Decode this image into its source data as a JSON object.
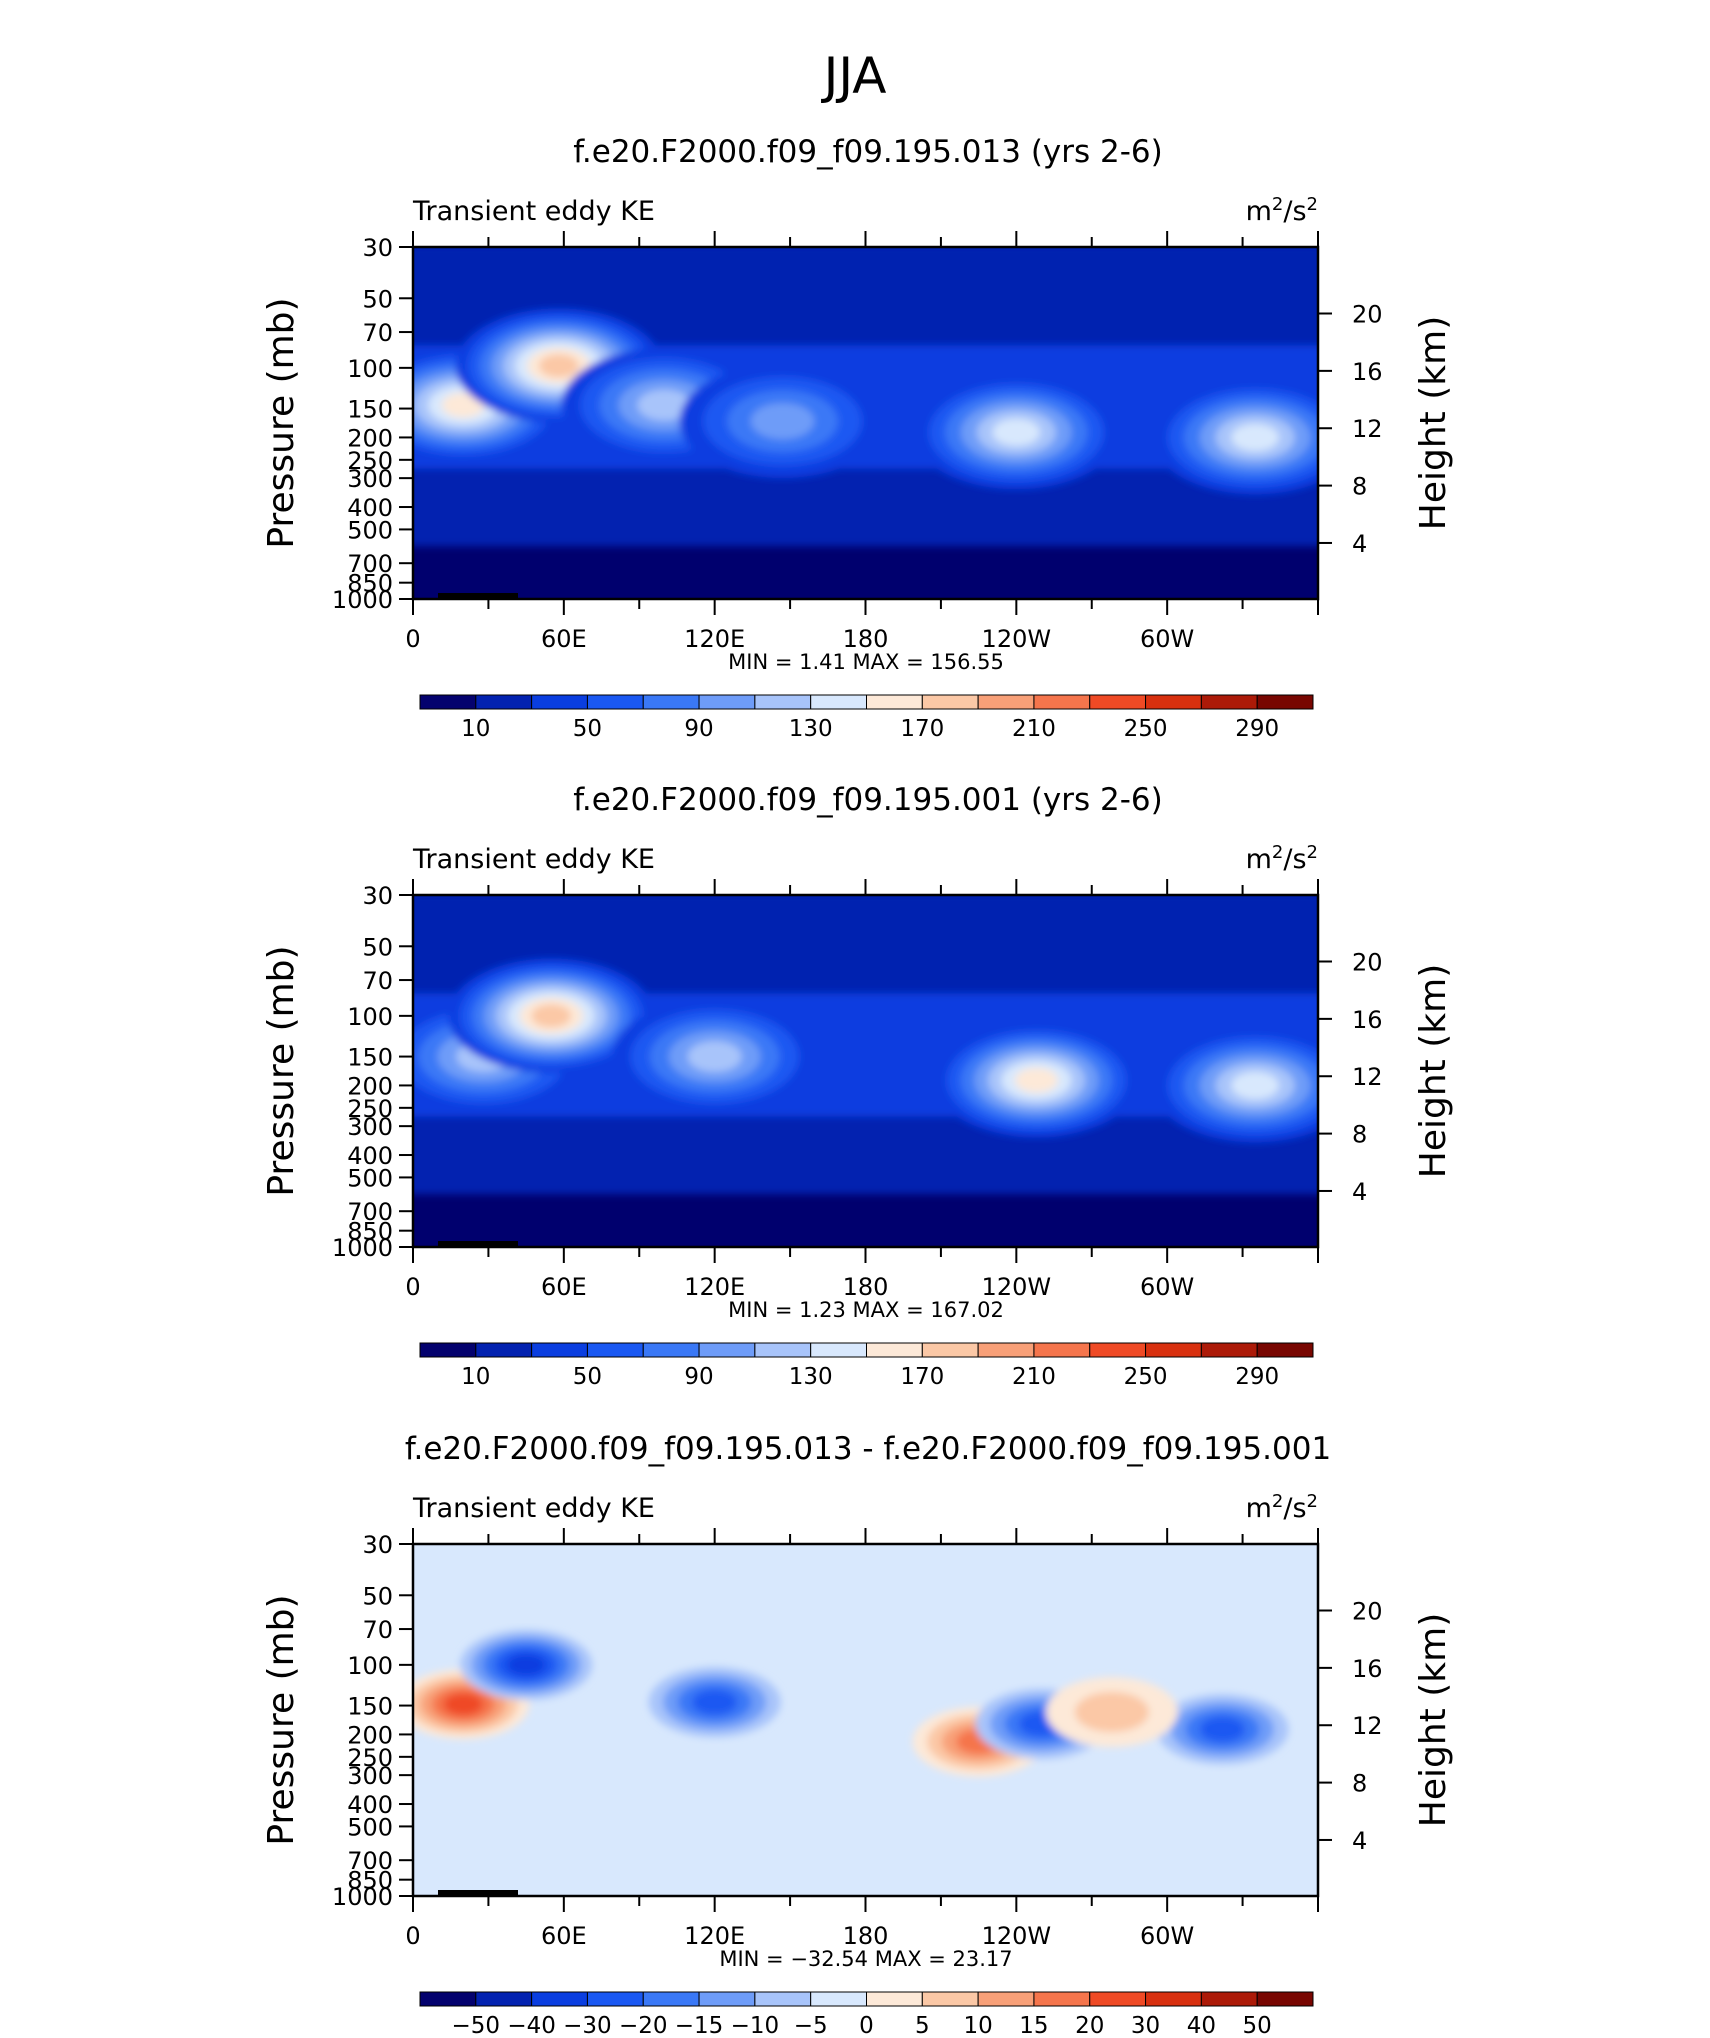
{
  "main_title": "JJA",
  "chart_data": [
    {
      "type": "heatmap",
      "title": "f.e20.F2000.f09_f09.195.013 (yrs 2-6)",
      "variable": "Transient eddy KE",
      "units_base": "m",
      "units_exp1": "2",
      "units_sep": "/s",
      "units_exp2": "2",
      "ylabel": "Pressure (mb)",
      "y2label": "Height (km)",
      "x_ticks": [
        "0",
        "60E",
        "120E",
        "180",
        "120W",
        "60W"
      ],
      "y_ticks": [
        "30",
        "50",
        "70",
        "100",
        "150",
        "200",
        "250",
        "300",
        "400",
        "500",
        "700",
        "850",
        "1000"
      ],
      "y2_ticks": [
        "20",
        "16",
        "12",
        "8",
        "4"
      ],
      "xlim": [
        0,
        360
      ],
      "ylim": [
        1000,
        30
      ],
      "y_scale": "log",
      "min_label": "MIN =",
      "min_value": "1.41",
      "max_label": "MAX =",
      "max_value": "156.55",
      "colorbar_labels": [
        "10",
        "50",
        "90",
        "130",
        "170",
        "210",
        "250",
        "290"
      ],
      "colorbar_colors": [
        "#04026e",
        "#0322b0",
        "#0a3ee0",
        "#1a58f2",
        "#3a78f6",
        "#6e9cf8",
        "#a8c4fa",
        "#d8e8fd",
        "#fde9d8",
        "#fbc8a6",
        "#f8a078",
        "#f5754c",
        "#ef4a25",
        "#d8300f",
        "#ac1a08",
        "#780601"
      ],
      "features": [
        {
          "lon": 20,
          "p": 145,
          "v": 145
        },
        {
          "lon": 58,
          "p": 98,
          "v": 156.55
        },
        {
          "lon": 100,
          "p": 145,
          "v": 95
        },
        {
          "lon": 147,
          "p": 170,
          "v": 85
        },
        {
          "lon": 240,
          "p": 190,
          "v": 120
        },
        {
          "lon": 335,
          "p": 200,
          "v": 115
        },
        {
          "lon": 30,
          "p": 1000,
          "v": 1.41
        }
      ]
    },
    {
      "type": "heatmap",
      "title": "f.e20.F2000.f09_f09.195.001 (yrs 2-6)",
      "variable": "Transient eddy KE",
      "units_base": "m",
      "units_exp1": "2",
      "units_sep": "/s",
      "units_exp2": "2",
      "ylabel": "Pressure (mb)",
      "y2label": "Height (km)",
      "x_ticks": [
        "0",
        "60E",
        "120E",
        "180",
        "120W",
        "60W"
      ],
      "y_ticks": [
        "30",
        "50",
        "70",
        "100",
        "150",
        "200",
        "250",
        "300",
        "400",
        "500",
        "700",
        "850",
        "1000"
      ],
      "y2_ticks": [
        "20",
        "16",
        "12",
        "8",
        "4"
      ],
      "xlim": [
        0,
        360
      ],
      "ylim": [
        1000,
        30
      ],
      "y_scale": "log",
      "min_label": "MIN =",
      "min_value": "1.23",
      "max_label": "MAX =",
      "max_value": "167.02",
      "colorbar_labels": [
        "10",
        "50",
        "90",
        "130",
        "170",
        "210",
        "250",
        "290"
      ],
      "colorbar_colors": [
        "#04026e",
        "#0322b0",
        "#0a3ee0",
        "#1a58f2",
        "#3a78f6",
        "#6e9cf8",
        "#a8c4fa",
        "#d8e8fd",
        "#fde9d8",
        "#fbc8a6",
        "#f8a078",
        "#f5754c",
        "#ef4a25",
        "#d8300f",
        "#ac1a08",
        "#780601"
      ],
      "features": [
        {
          "lon": 28,
          "p": 150,
          "v": 110
        },
        {
          "lon": 55,
          "p": 100,
          "v": 167.02
        },
        {
          "lon": 120,
          "p": 150,
          "v": 110
        },
        {
          "lon": 248,
          "p": 190,
          "v": 140
        },
        {
          "lon": 335,
          "p": 200,
          "v": 125
        },
        {
          "lon": 30,
          "p": 1000,
          "v": 1.23
        }
      ]
    },
    {
      "type": "heatmap",
      "title": "f.e20.F2000.f09_f09.195.013 - f.e20.F2000.f09_f09.195.001",
      "variable": "Transient eddy KE",
      "units_base": "m",
      "units_exp1": "2",
      "units_sep": "/s",
      "units_exp2": "2",
      "ylabel": "Pressure (mb)",
      "y2label": "Height (km)",
      "x_ticks": [
        "0",
        "60E",
        "120E",
        "180",
        "120W",
        "60W"
      ],
      "y_ticks": [
        "30",
        "50",
        "70",
        "100",
        "150",
        "200",
        "250",
        "300",
        "400",
        "500",
        "700",
        "850",
        "1000"
      ],
      "y2_ticks": [
        "20",
        "16",
        "12",
        "8",
        "4"
      ],
      "xlim": [
        0,
        360
      ],
      "ylim": [
        1000,
        30
      ],
      "y_scale": "log",
      "min_label": "MIN =",
      "min_value": "−32.54",
      "max_label": "MAX =",
      "max_value": "23.17",
      "colorbar_labels": [
        "−50",
        "−40",
        "−30",
        "−20",
        "−15",
        "−10",
        "−5",
        "0",
        "5",
        "10",
        "15",
        "20",
        "30",
        "40",
        "50"
      ],
      "colorbar_colors": [
        "#04026e",
        "#0322b0",
        "#0a3ee0",
        "#1a58f2",
        "#3a78f6",
        "#6e9cf8",
        "#a8c4fa",
        "#d8e8fd",
        "#fde9d8",
        "#fbc8a6",
        "#f8a078",
        "#f5754c",
        "#ef4a25",
        "#d8300f",
        "#ac1a08",
        "#780601"
      ],
      "features": [
        {
          "lon": 20,
          "p": 148,
          "v": 23.17
        },
        {
          "lon": 45,
          "p": 100,
          "v": -32.54
        },
        {
          "lon": 120,
          "p": 145,
          "v": -28
        },
        {
          "lon": 225,
          "p": 215,
          "v": 18
        },
        {
          "lon": 250,
          "p": 180,
          "v": -25
        },
        {
          "lon": 322,
          "p": 190,
          "v": -22
        },
        {
          "lon": 278,
          "p": 160,
          "v": 10
        }
      ]
    }
  ]
}
